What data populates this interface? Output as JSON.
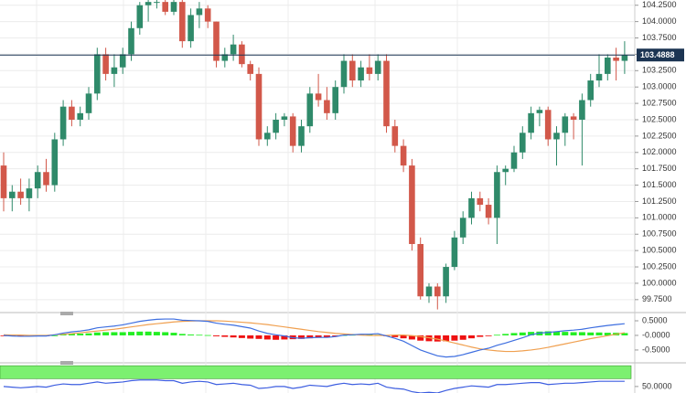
{
  "chart_data": [
    {
      "type": "candlestick",
      "open": [
        101.8,
        101.3,
        101.4,
        101.3,
        101.45,
        101.7,
        101.5,
        102.2,
        102.7,
        102.5,
        102.6,
        102.9,
        103.5,
        103.2,
        103.3,
        103.5,
        103.9,
        104.25,
        104.3,
        104.3,
        104.15,
        104.3,
        103.7,
        104.1,
        104.2,
        104.0,
        103.4,
        103.5,
        103.65,
        103.35,
        103.2,
        102.2,
        102.3,
        102.5,
        102.55,
        102.1,
        102.4,
        102.9,
        102.8,
        102.6,
        103.0,
        103.4,
        103.1,
        103.3,
        103.2,
        103.4,
        102.4,
        102.1,
        101.8,
        100.6,
        99.8,
        99.95,
        99.8,
        100.25,
        100.7,
        101.0,
        101.3,
        101.2,
        101.0,
        101.7,
        101.75,
        102.0,
        102.3,
        102.6,
        102.65,
        102.2,
        102.3,
        102.55,
        102.5,
        102.8,
        103.1,
        103.2,
        103.45,
        103.4
      ],
      "high": [
        102.0,
        101.5,
        101.6,
        101.6,
        101.8,
        101.9,
        102.3,
        102.8,
        102.8,
        102.7,
        103.0,
        103.6,
        103.6,
        103.5,
        103.6,
        104.0,
        104.3,
        104.35,
        104.35,
        104.4,
        104.4,
        104.35,
        104.2,
        104.3,
        104.25,
        104.0,
        103.6,
        103.8,
        103.7,
        103.4,
        103.3,
        102.4,
        102.6,
        102.6,
        102.6,
        102.5,
        103.0,
        103.2,
        103.0,
        103.1,
        103.5,
        103.5,
        103.4,
        103.5,
        103.5,
        103.5,
        102.5,
        102.2,
        101.9,
        100.7,
        100.0,
        100.0,
        100.3,
        100.8,
        101.1,
        101.4,
        101.4,
        101.3,
        101.8,
        101.8,
        102.1,
        102.4,
        102.7,
        102.7,
        102.7,
        102.4,
        102.6,
        102.6,
        102.9,
        103.2,
        103.5,
        103.5,
        103.6,
        103.7
      ],
      "low": [
        101.1,
        101.1,
        101.2,
        101.1,
        101.3,
        101.4,
        101.4,
        102.1,
        102.4,
        102.4,
        102.5,
        102.8,
        103.1,
        103.0,
        103.2,
        103.4,
        103.8,
        104.0,
        104.2,
        104.1,
        104.1,
        103.6,
        103.6,
        103.9,
        103.9,
        103.3,
        103.3,
        103.4,
        103.3,
        103.1,
        102.1,
        102.1,
        102.2,
        102.4,
        102.0,
        102.0,
        102.3,
        102.7,
        102.5,
        102.5,
        102.9,
        103.0,
        103.0,
        103.1,
        103.1,
        102.3,
        102.0,
        101.7,
        100.5,
        99.75,
        99.7,
        99.6,
        99.7,
        100.2,
        100.6,
        100.9,
        101.1,
        100.9,
        100.6,
        101.5,
        101.7,
        101.9,
        102.2,
        102.4,
        102.1,
        101.8,
        102.1,
        102.2,
        101.8,
        102.7,
        103.0,
        103.1,
        103.1,
        103.2
      ],
      "close": [
        101.3,
        101.4,
        101.3,
        101.45,
        101.7,
        101.5,
        102.2,
        102.7,
        102.5,
        102.6,
        102.9,
        103.5,
        103.2,
        103.3,
        103.5,
        103.9,
        104.25,
        104.3,
        104.3,
        104.15,
        104.3,
        103.7,
        104.1,
        104.2,
        104.0,
        103.4,
        103.5,
        103.65,
        103.35,
        103.2,
        102.2,
        102.3,
        102.5,
        102.55,
        102.1,
        102.4,
        102.9,
        102.8,
        102.6,
        103.0,
        103.4,
        103.1,
        103.3,
        103.2,
        103.4,
        102.4,
        102.1,
        101.8,
        100.6,
        99.8,
        99.95,
        99.8,
        100.25,
        100.7,
        101.0,
        101.3,
        101.2,
        101.0,
        101.7,
        101.75,
        102.0,
        102.3,
        102.6,
        102.65,
        102.2,
        102.3,
        102.55,
        102.5,
        102.8,
        103.1,
        103.2,
        103.45,
        103.4,
        103.4888
      ],
      "up_color": "#2f8a6a",
      "down_color": "#d2584a",
      "last_price": 103.4888,
      "last_price_color": "#1c3553",
      "ylim": [
        99.58,
        104.33
      ],
      "yticks": [
        {
          "value": 99.75,
          "label": "99.7500"
        },
        {
          "value": 100,
          "label": "100.0000"
        },
        {
          "value": 100.25,
          "label": "100.2500"
        },
        {
          "value": 100.5,
          "label": "100.5000"
        },
        {
          "value": 100.75,
          "label": "100.7500"
        },
        {
          "value": 101,
          "label": "101.0000"
        },
        {
          "value": 101.25,
          "label": "101.2500"
        },
        {
          "value": 101.5,
          "label": "101.5000"
        },
        {
          "value": 101.75,
          "label": "101.7500"
        },
        {
          "value": 102,
          "label": "102.0000"
        },
        {
          "value": 102.25,
          "label": "102.2500"
        },
        {
          "value": 102.5,
          "label": "102.5000"
        },
        {
          "value": 102.75,
          "label": "102.7500"
        },
        {
          "value": 103,
          "label": "103.0000"
        },
        {
          "value": 103.25,
          "label": "103.2500"
        },
        {
          "value": 103.5,
          "label": "103.5000"
        },
        {
          "value": 103.75,
          "label": "103.7500"
        },
        {
          "value": 104,
          "label": "104.0000"
        },
        {
          "value": 104.25,
          "label": "104.2500"
        }
      ],
      "grid": true
    },
    {
      "type": "macd",
      "histogram": [
        -0.02,
        -0.02,
        -0.03,
        -0.03,
        -0.02,
        -0.02,
        0.0,
        0.04,
        0.06,
        0.06,
        0.07,
        0.1,
        0.11,
        0.11,
        0.11,
        0.12,
        0.13,
        0.13,
        0.12,
        0.11,
        0.09,
        0.05,
        0.03,
        0.02,
        0.01,
        -0.03,
        -0.05,
        -0.07,
        -0.09,
        -0.11,
        -0.12,
        -0.14,
        -0.15,
        -0.14,
        -0.13,
        -0.12,
        -0.1,
        -0.08,
        -0.06,
        -0.03,
        0.01,
        0.02,
        0.03,
        0.03,
        0.02,
        -0.02,
        -0.06,
        -0.1,
        -0.14,
        -0.18,
        -0.2,
        -0.21,
        -0.2,
        -0.18,
        -0.15,
        -0.1,
        -0.05,
        -0.02,
        0.02,
        0.05,
        0.08,
        0.1,
        0.12,
        0.13,
        0.14,
        0.13,
        0.12,
        0.11,
        0.11,
        0.1,
        0.1,
        0.09,
        0.09,
        0.08
      ],
      "macd": [
        0.0,
        -0.02,
        -0.03,
        -0.03,
        -0.02,
        -0.02,
        0.02,
        0.08,
        0.12,
        0.15,
        0.19,
        0.26,
        0.29,
        0.32,
        0.36,
        0.42,
        0.48,
        0.52,
        0.55,
        0.56,
        0.56,
        0.52,
        0.51,
        0.5,
        0.48,
        0.42,
        0.38,
        0.35,
        0.3,
        0.25,
        0.15,
        0.07,
        0.02,
        -0.02,
        -0.08,
        -0.1,
        -0.08,
        -0.07,
        -0.07,
        -0.04,
        0.01,
        0.02,
        0.04,
        0.04,
        0.06,
        -0.02,
        -0.1,
        -0.2,
        -0.35,
        -0.5,
        -0.6,
        -0.7,
        -0.74,
        -0.72,
        -0.66,
        -0.58,
        -0.5,
        -0.44,
        -0.34,
        -0.26,
        -0.17,
        -0.08,
        0.02,
        0.08,
        0.1,
        0.13,
        0.16,
        0.18,
        0.21,
        0.26,
        0.3,
        0.34,
        0.37,
        0.4
      ],
      "signal": [
        0.02,
        0.01,
        0.01,
        0.0,
        0.0,
        0.0,
        0.02,
        0.04,
        0.06,
        0.09,
        0.12,
        0.15,
        0.18,
        0.21,
        0.25,
        0.29,
        0.33,
        0.37,
        0.4,
        0.43,
        0.46,
        0.48,
        0.49,
        0.5,
        0.5,
        0.5,
        0.49,
        0.47,
        0.45,
        0.43,
        0.4,
        0.37,
        0.33,
        0.29,
        0.25,
        0.21,
        0.17,
        0.13,
        0.1,
        0.07,
        0.05,
        0.03,
        0.01,
        0.0,
        0.0,
        0.0,
        0.01,
        0.01,
        -0.01,
        -0.04,
        -0.08,
        -0.13,
        -0.19,
        -0.26,
        -0.33,
        -0.4,
        -0.46,
        -0.5,
        -0.53,
        -0.55,
        -0.55,
        -0.53,
        -0.5,
        -0.46,
        -0.41,
        -0.35,
        -0.29,
        -0.23,
        -0.17,
        -0.11,
        -0.06,
        -0.01,
        0.04,
        0.09
      ],
      "macd_color": "#3d6ee0",
      "signal_color": "#f0a050",
      "up_color": "#22ee22",
      "down_color": "#ee1111",
      "ylim": [
        -0.94,
        0.75
      ],
      "yticks": [
        {
          "value": 0.5,
          "label": "0.5000"
        },
        {
          "value": 0,
          "label": "-0.0000"
        },
        {
          "value": -0.5,
          "label": "-0.5000"
        }
      ]
    },
    {
      "type": "line",
      "values": [
        50,
        49,
        48,
        49,
        50,
        49,
        52,
        54,
        53,
        53,
        55,
        57,
        55,
        56,
        57,
        59,
        60,
        60,
        60,
        59,
        59,
        55,
        57,
        58,
        57,
        53,
        54,
        55,
        53,
        52,
        47,
        48,
        50,
        50,
        47,
        49,
        52,
        51,
        50,
        53,
        55,
        53,
        54,
        53,
        55,
        49,
        47,
        46,
        42,
        40,
        41,
        40,
        44,
        47,
        49,
        51,
        50,
        49,
        53,
        53,
        54,
        55,
        56,
        56,
        53,
        54,
        55,
        55,
        56,
        57,
        58,
        58,
        58,
        58
      ],
      "color": "#3d5ee0",
      "band": [
        62,
        82
      ],
      "band_color": "#7cf070",
      "ylim": [
        40,
        85
      ],
      "yticks": [
        {
          "value": 50,
          "label": "50.0000"
        }
      ]
    }
  ]
}
